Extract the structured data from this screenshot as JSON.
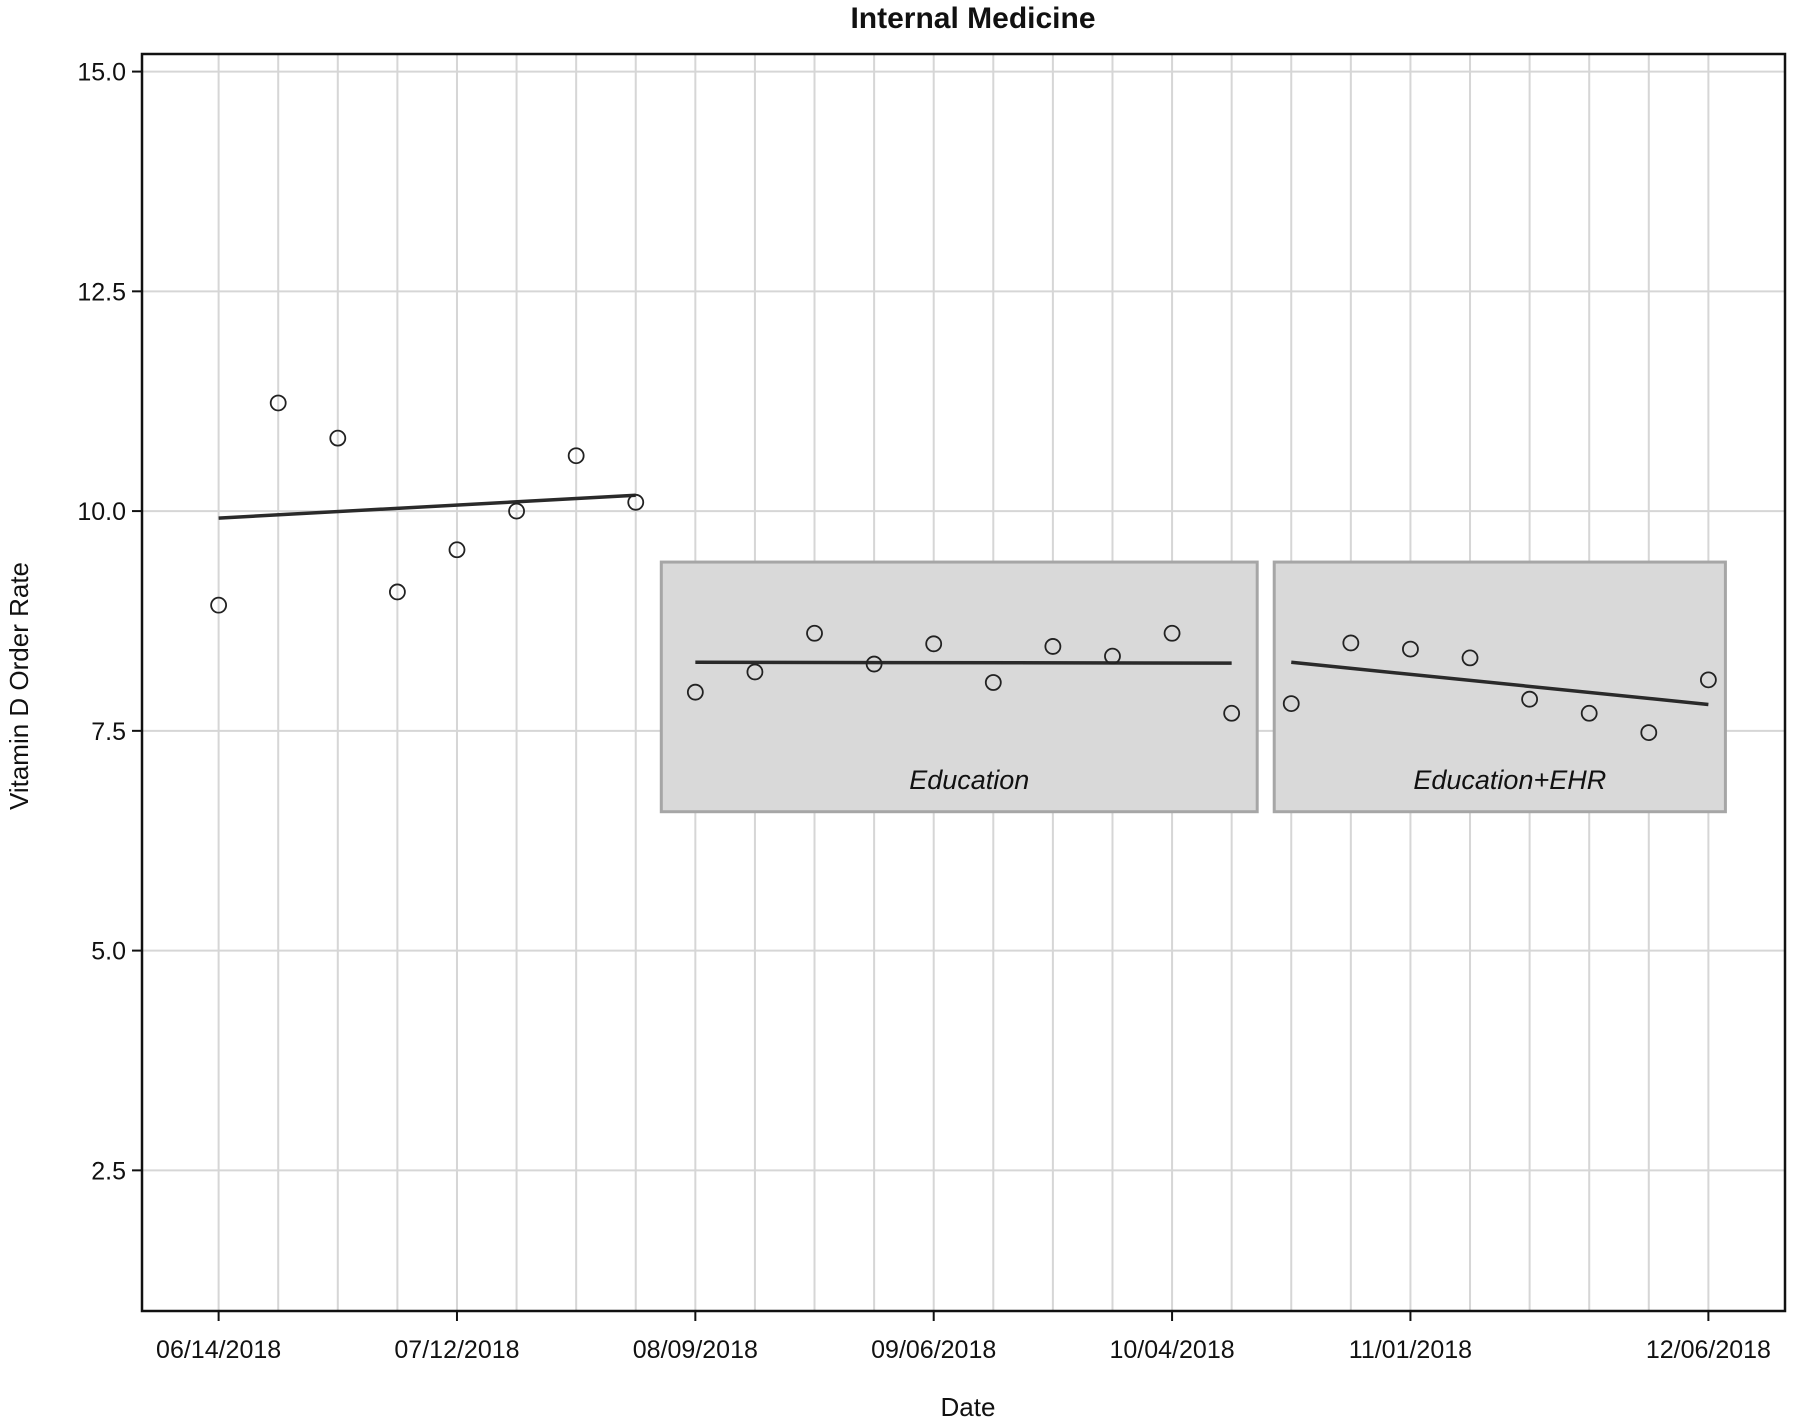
{
  "chart_data": {
    "type": "scatter",
    "title": "Internal Medicine",
    "xlabel": "Date",
    "ylabel": "Vitamin D Order Rate",
    "ylim": [
      0.9,
      15.2
    ],
    "xlim": [
      "2018-06-05",
      "2018-12-15"
    ],
    "yticks": [
      "15.0",
      "12.5",
      "10.0",
      "7.5",
      "5.0",
      "2.5"
    ],
    "ytick_values": [
      15.0,
      12.5,
      10.0,
      7.5,
      5.0,
      2.5
    ],
    "xticks": [
      "06/14/2018",
      "07/12/2018",
      "08/09/2018",
      "09/06/2018",
      "10/04/2018",
      "11/01/2018",
      "12/06/2018"
    ],
    "xtick_dates": [
      "2018-06-14",
      "2018-07-12",
      "2018-08-09",
      "2018-09-06",
      "2018-10-04",
      "2018-11-01",
      "2018-12-06"
    ],
    "vertical_gridlines": [
      "2018-06-14",
      "2018-06-21",
      "2018-06-28",
      "2018-07-05",
      "2018-07-12",
      "2018-07-19",
      "2018-07-26",
      "2018-08-02",
      "2018-08-09",
      "2018-08-16",
      "2018-08-23",
      "2018-08-30",
      "2018-09-06",
      "2018-09-13",
      "2018-09-20",
      "2018-09-27",
      "2018-10-04",
      "2018-10-11",
      "2018-10-18",
      "2018-10-25",
      "2018-11-01",
      "2018-11-08",
      "2018-11-15",
      "2018-11-22",
      "2018-11-29",
      "2018-12-06"
    ],
    "grid": true,
    "phases": [
      {
        "label": "",
        "shaded": false,
        "points": [
          {
            "x": "2018-06-14",
            "y": 8.93
          },
          {
            "x": "2018-06-21",
            "y": 11.23
          },
          {
            "x": "2018-06-28",
            "y": 10.83
          },
          {
            "x": "2018-07-05",
            "y": 9.08
          },
          {
            "x": "2018-07-12",
            "y": 9.56
          },
          {
            "x": "2018-07-19",
            "y": 10.0
          },
          {
            "x": "2018-07-26",
            "y": 10.63
          },
          {
            "x": "2018-08-02",
            "y": 10.1
          }
        ],
        "trend": {
          "x": [
            "2018-06-14",
            "2018-08-02"
          ],
          "y": [
            9.92,
            10.18
          ]
        }
      },
      {
        "label": "Education",
        "shaded": true,
        "box": {
          "x": [
            "2018-08-05",
            "2018-10-14"
          ],
          "y": [
            6.58,
            9.42
          ]
        },
        "points": [
          {
            "x": "2018-08-09",
            "y": 7.94
          },
          {
            "x": "2018-08-16",
            "y": 8.17
          },
          {
            "x": "2018-08-23",
            "y": 8.61
          },
          {
            "x": "2018-08-30",
            "y": 8.26
          },
          {
            "x": "2018-09-06",
            "y": 8.49
          },
          {
            "x": "2018-09-13",
            "y": 8.05
          },
          {
            "x": "2018-09-20",
            "y": 8.46
          },
          {
            "x": "2018-09-27",
            "y": 8.35
          },
          {
            "x": "2018-10-04",
            "y": 8.61
          },
          {
            "x": "2018-10-11",
            "y": 7.7
          }
        ],
        "trend": {
          "x": [
            "2018-08-09",
            "2018-10-11"
          ],
          "y": [
            8.28,
            8.27
          ]
        }
      },
      {
        "label": "Education+EHR",
        "shaded": true,
        "box": {
          "x": [
            "2018-10-16",
            "2018-12-08"
          ],
          "y": [
            6.58,
            9.42
          ]
        },
        "points": [
          {
            "x": "2018-10-18",
            "y": 7.81
          },
          {
            "x": "2018-10-25",
            "y": 8.5
          },
          {
            "x": "2018-11-01",
            "y": 8.43
          },
          {
            "x": "2018-11-08",
            "y": 8.33
          },
          {
            "x": "2018-11-15",
            "y": 7.86
          },
          {
            "x": "2018-11-22",
            "y": 7.7
          },
          {
            "x": "2018-11-29",
            "y": 7.48
          },
          {
            "x": "2018-12-06",
            "y": 8.08
          }
        ],
        "trend": {
          "x": [
            "2018-10-18",
            "2018-12-06"
          ],
          "y": [
            8.28,
            7.8
          ]
        }
      }
    ]
  }
}
